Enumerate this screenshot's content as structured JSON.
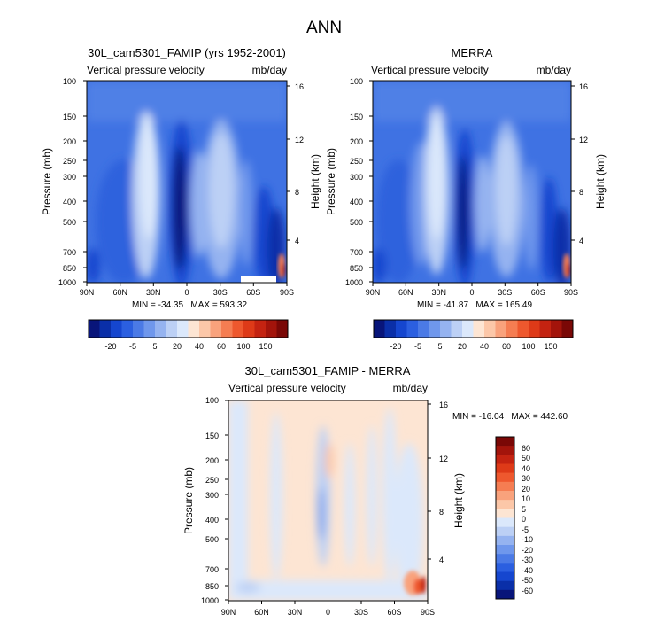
{
  "figure": {
    "title": "ANN"
  },
  "colors": {
    "neg": [
      "#08157a",
      "#0a2fa8",
      "#1546cf",
      "#2b5fe0",
      "#4b7ae6",
      "#6f97ec",
      "#95b3f0",
      "#bcd0f5",
      "#dbe8fb"
    ],
    "pos": [
      "#fde5d3",
      "#fcc7a8",
      "#f9a27c",
      "#f57d52",
      "#ee582e",
      "#de3a18",
      "#c42311",
      "#a3140b",
      "#7a0806"
    ],
    "diff_neg": [
      "#08157a",
      "#0a2fa8",
      "#1546cf",
      "#2b5fe0",
      "#4b7ae6",
      "#6f97ec",
      "#95b3f0",
      "#bcd0f5",
      "#dbe8fb"
    ],
    "diff_pos": [
      "#fde5d3",
      "#fcc7a8",
      "#f9a27c",
      "#f57d52",
      "#ee582e",
      "#de3a18",
      "#c42311",
      "#a3140b",
      "#7a0806"
    ]
  },
  "chart_data": [
    {
      "type": "heatmap",
      "title": "30L_cam5301_FAMIP (yrs 1952-2001)",
      "left_label": "Vertical pressure velocity",
      "right_label": "mb/day",
      "ylabel": "Pressure (mb)",
      "ylabel_right": "Height (km)",
      "x_ticks": [
        "90N",
        "60N",
        "30N",
        "0",
        "30S",
        "60S",
        "90S"
      ],
      "y_ticks": [
        "100",
        "150",
        "200",
        "250",
        "300",
        "400",
        "500",
        "700",
        "850",
        "1000"
      ],
      "y_ticks_right": [
        "16",
        "12",
        "8",
        "4"
      ],
      "min_max": "MIN = -34.35   MAX = 593.32",
      "colorbar_labels": [
        "-20",
        "-5",
        "5",
        "20",
        "40",
        "60",
        "100",
        "150"
      ],
      "value_range": [
        -34.35,
        593.32
      ]
    },
    {
      "type": "heatmap",
      "title": "MERRA",
      "left_label": "Vertical pressure velocity",
      "right_label": "mb/day",
      "ylabel": "Pressure (mb)",
      "ylabel_right": "Height (km)",
      "x_ticks": [
        "90N",
        "60N",
        "30N",
        "0",
        "30S",
        "60S",
        "90S"
      ],
      "y_ticks": [
        "100",
        "150",
        "200",
        "250",
        "300",
        "400",
        "500",
        "700",
        "850",
        "1000"
      ],
      "y_ticks_right": [
        "16",
        "12",
        "8",
        "4"
      ],
      "min_max": "MIN = -41.87   MAX = 165.49",
      "colorbar_labels": [
        "-20",
        "-5",
        "5",
        "20",
        "40",
        "60",
        "100",
        "150"
      ],
      "value_range": [
        -41.87,
        165.49
      ]
    },
    {
      "type": "heatmap",
      "title": "30L_cam5301_FAMIP - MERRA",
      "left_label": "Vertical pressure velocity",
      "right_label": "mb/day",
      "ylabel": "Pressure (mb)",
      "ylabel_right": "Height (km)",
      "x_ticks": [
        "90N",
        "60N",
        "30N",
        "0",
        "30S",
        "60S",
        "90S"
      ],
      "y_ticks": [
        "100",
        "150",
        "200",
        "250",
        "300",
        "400",
        "500",
        "700",
        "850",
        "1000"
      ],
      "y_ticks_right": [
        "16",
        "12",
        "8",
        "4"
      ],
      "min_max": "MIN = -16.04   MAX = 442.60",
      "colorbar_labels": [
        "60",
        "50",
        "40",
        "30",
        "20",
        "10",
        "5",
        "0",
        "-5",
        "-10",
        "-20",
        "-30",
        "-40",
        "-50",
        "-60"
      ],
      "value_range": [
        -16.04,
        442.6
      ]
    }
  ]
}
